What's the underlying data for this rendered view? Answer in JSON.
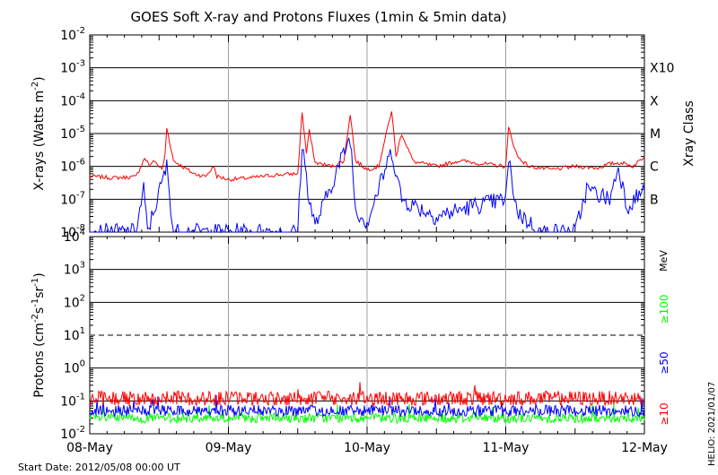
{
  "title": "GOES Soft X-ray and Protons Fluxes   (1min & 5min data)",
  "start_date": "Start Date: 2012/05/08 00:00 UT",
  "watermark": "HELIO: 2021/01/07",
  "colors": {
    "red": "#ff0000",
    "blue": "#0000ff",
    "green": "#00ff00",
    "grid": "#a0a0a0",
    "axis": "#000000"
  },
  "chart_data": [
    {
      "type": "line",
      "panel": "xray",
      "ylabel": "X-rays (Watts m",
      "ylabel_sup": "-2",
      "ylabel_close": ")",
      "yscale": "log",
      "ylim": [
        1e-08,
        0.01
      ],
      "y_ticks": [
        {
          "base": "10",
          "exp": "-8",
          "value": 1e-08
        },
        {
          "base": "10",
          "exp": "-7",
          "value": 1e-07
        },
        {
          "base": "10",
          "exp": "-6",
          "value": 1e-06
        },
        {
          "base": "10",
          "exp": "-5",
          "value": 1e-05
        },
        {
          "base": "10",
          "exp": "-4",
          "value": 0.0001
        },
        {
          "base": "10",
          "exp": "-3",
          "value": 0.001
        },
        {
          "base": "10",
          "exp": "-2",
          "value": 0.01
        }
      ],
      "right_axis_title": "Xray Class",
      "class_labels": [
        {
          "label": "X10",
          "value": 0.001
        },
        {
          "label": "X",
          "value": 0.0001
        },
        {
          "label": "M",
          "value": 1e-05
        },
        {
          "label": "C",
          "value": 1e-06
        },
        {
          "label": "B",
          "value": 1e-07
        }
      ],
      "xlim": [
        "2012-05-08 00:00",
        "2012-05-12 00:00"
      ],
      "series": [
        {
          "color": "red",
          "points": [
            [
              "05-08 00:00",
              5e-07
            ],
            [
              "05-08 04:00",
              4.5e-07
            ],
            [
              "05-08 08:00",
              4.8e-07
            ],
            [
              "05-08 09:30",
              1.8e-06
            ],
            [
              "05-08 10:30",
              1e-06
            ],
            [
              "05-08 11:00",
              1.6e-06
            ],
            [
              "05-08 12:30",
              8e-07
            ],
            [
              "05-08 13:00",
              2e-06
            ],
            [
              "05-08 13:20",
              1.5e-05
            ],
            [
              "05-08 14:30",
              1.5e-06
            ],
            [
              "05-08 16:00",
              1e-06
            ],
            [
              "05-08 18:00",
              6e-07
            ],
            [
              "05-08 20:00",
              5e-07
            ],
            [
              "05-08 21:30",
              1e-06
            ],
            [
              "05-08 22:00",
              5e-07
            ],
            [
              "05-09 00:00",
              4e-07
            ],
            [
              "05-09 04:00",
              4.5e-07
            ],
            [
              "05-09 08:00",
              5.5e-07
            ],
            [
              "05-09 12:00",
              6e-07
            ],
            [
              "05-09 12:45",
              4.5e-05
            ],
            [
              "05-09 13:30",
              2.5e-06
            ],
            [
              "05-09 14:00",
              1.2e-05
            ],
            [
              "05-09 15:00",
              1.3e-06
            ],
            [
              "05-09 18:00",
              1e-06
            ],
            [
              "05-09 20:00",
              1.5e-06
            ],
            [
              "05-09 21:05",
              4e-05
            ],
            [
              "05-09 22:00",
              1.5e-06
            ],
            [
              "05-10 00:00",
              8e-07
            ],
            [
              "05-10 02:00",
              1e-06
            ],
            [
              "05-10 04:15",
              5e-05
            ],
            [
              "05-10 05:00",
              2e-06
            ],
            [
              "05-10 06:00",
              1e-05
            ],
            [
              "05-10 08:00",
              1.4e-06
            ],
            [
              "05-10 12:00",
              1e-06
            ],
            [
              "05-10 16:00",
              1.5e-06
            ],
            [
              "05-10 20:00",
              1.2e-06
            ],
            [
              "05-11 00:00",
              1e-06
            ],
            [
              "05-11 00:30",
              1.5e-05
            ],
            [
              "05-11 02:00",
              2e-06
            ],
            [
              "05-11 04:00",
              1e-06
            ],
            [
              "05-11 08:00",
              8e-07
            ],
            [
              "05-11 12:00",
              1e-06
            ],
            [
              "05-11 16:00",
              9e-07
            ],
            [
              "05-11 18:00",
              1.2e-06
            ],
            [
              "05-11 20:00",
              1.3e-06
            ],
            [
              "05-11 22:00",
              1e-06
            ],
            [
              "05-12 00:00",
              2e-06
            ]
          ]
        },
        {
          "color": "blue",
          "points": [
            [
              "05-08 00:00",
              1e-08
            ],
            [
              "05-08 08:00",
              1e-08
            ],
            [
              "05-08 09:20",
              2e-07
            ],
            [
              "05-08 10:00",
              1e-08
            ],
            [
              "05-08 13:20",
              1e-06
            ],
            [
              "05-08 14:30",
              1e-08
            ],
            [
              "05-09 12:00",
              1e-08
            ],
            [
              "05-09 12:45",
              5e-06
            ],
            [
              "05-09 14:00",
              1e-07
            ],
            [
              "05-09 15:00",
              1.5e-08
            ],
            [
              "05-09 21:05",
              8e-06
            ],
            [
              "05-09 22:00",
              5e-08
            ],
            [
              "05-10 00:00",
              2e-08
            ],
            [
              "05-10 04:15",
              3e-06
            ],
            [
              "05-10 06:00",
              1e-07
            ],
            [
              "05-10 12:00",
              3e-08
            ],
            [
              "05-10 18:00",
              6e-08
            ],
            [
              "05-11 00:00",
              1e-07
            ],
            [
              "05-11 00:30",
              1.5e-06
            ],
            [
              "05-11 02:00",
              4e-08
            ],
            [
              "05-11 06:00",
              1e-08
            ],
            [
              "05-11 12:00",
              1e-08
            ],
            [
              "05-11 14:00",
              2e-07
            ],
            [
              "05-11 18:00",
              1e-07
            ],
            [
              "05-11 19:30",
              1e-06
            ],
            [
              "05-11 21:00",
              6e-08
            ],
            [
              "05-12 00:00",
              2e-07
            ]
          ]
        }
      ]
    },
    {
      "type": "line",
      "panel": "protons",
      "ylabel": "Protons (cm",
      "ylabel_parts": [
        {
          "text": "Protons (cm",
          "sup": false
        },
        {
          "text": "-2",
          "sup": true
        },
        {
          "text": "s",
          "sup": false
        },
        {
          "text": "-1",
          "sup": true
        },
        {
          "text": "sr",
          "sup": false
        },
        {
          "text": "-1",
          "sup": true
        },
        {
          "text": ")",
          "sup": false
        }
      ],
      "yscale": "log",
      "ylim": [
        0.01,
        10000
      ],
      "y_ticks": [
        {
          "base": "10",
          "exp": "-2",
          "value": 0.01
        },
        {
          "base": "10",
          "exp": "-1",
          "value": 0.1
        },
        {
          "base": "10",
          "exp": "0",
          "value": 1
        },
        {
          "base": "10",
          "exp": "1",
          "value": 10
        },
        {
          "base": "10",
          "exp": "2",
          "value": 100
        },
        {
          "base": "10",
          "exp": "3",
          "value": 1000
        },
        {
          "base": "10",
          "exp": "4",
          "value": 10000
        }
      ],
      "threshold_line": 10,
      "right_unit": "MeV",
      "series_labels": [
        {
          "label": "≥100",
          "color": "green"
        },
        {
          "label": "≥50",
          "color": "blue"
        },
        {
          "label": "≥10",
          "color": "red"
        }
      ],
      "x_ticks": [
        "08-May",
        "09-May",
        "10-May",
        "11-May",
        "12-May"
      ],
      "series": [
        {
          "color": "red",
          "base": 0.12,
          "spread": 0.45
        },
        {
          "color": "blue",
          "base": 0.05,
          "spread": 0.35
        },
        {
          "color": "green",
          "base": 0.03,
          "spread": 0.3
        }
      ]
    }
  ]
}
